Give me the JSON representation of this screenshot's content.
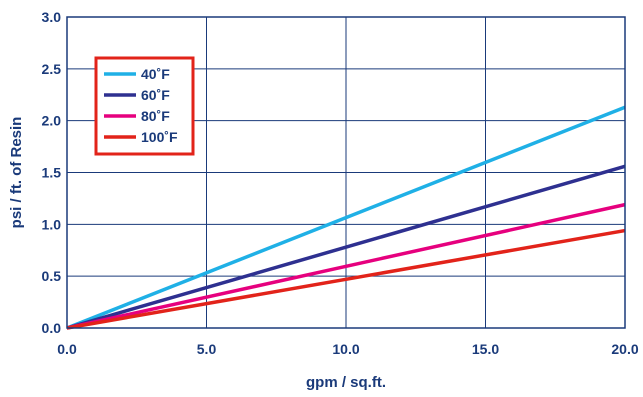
{
  "chart_data": {
    "type": "line",
    "title": "",
    "xlabel": "gpm / sq.ft.",
    "ylabel": "psi / ft. of Resin",
    "xlim": [
      0,
      20
    ],
    "ylim": [
      0,
      3
    ],
    "x_ticks": [
      "0.0",
      "5.0",
      "10.0",
      "15.0",
      "20.0"
    ],
    "y_ticks": [
      "0.0",
      "0.5",
      "1.0",
      "1.5",
      "2.0",
      "2.5",
      "3.0"
    ],
    "grid": true,
    "legend_position": "top-left",
    "legend_border_color": "#e2231a",
    "axis_text_color": "#1a3a7a",
    "grid_color": "#1a3a7a",
    "series": [
      {
        "name": "40˚F",
        "color": "#1fb0e6",
        "x": [
          0,
          20
        ],
        "y": [
          0,
          2.13
        ]
      },
      {
        "name": "60˚F",
        "color": "#2e3090",
        "x": [
          0,
          20
        ],
        "y": [
          0,
          1.56
        ]
      },
      {
        "name": "80˚F",
        "color": "#e6007e",
        "x": [
          0,
          20
        ],
        "y": [
          0,
          1.19
        ]
      },
      {
        "name": "100˚F",
        "color": "#e2231a",
        "x": [
          0,
          20
        ],
        "y": [
          0,
          0.94
        ]
      }
    ]
  }
}
